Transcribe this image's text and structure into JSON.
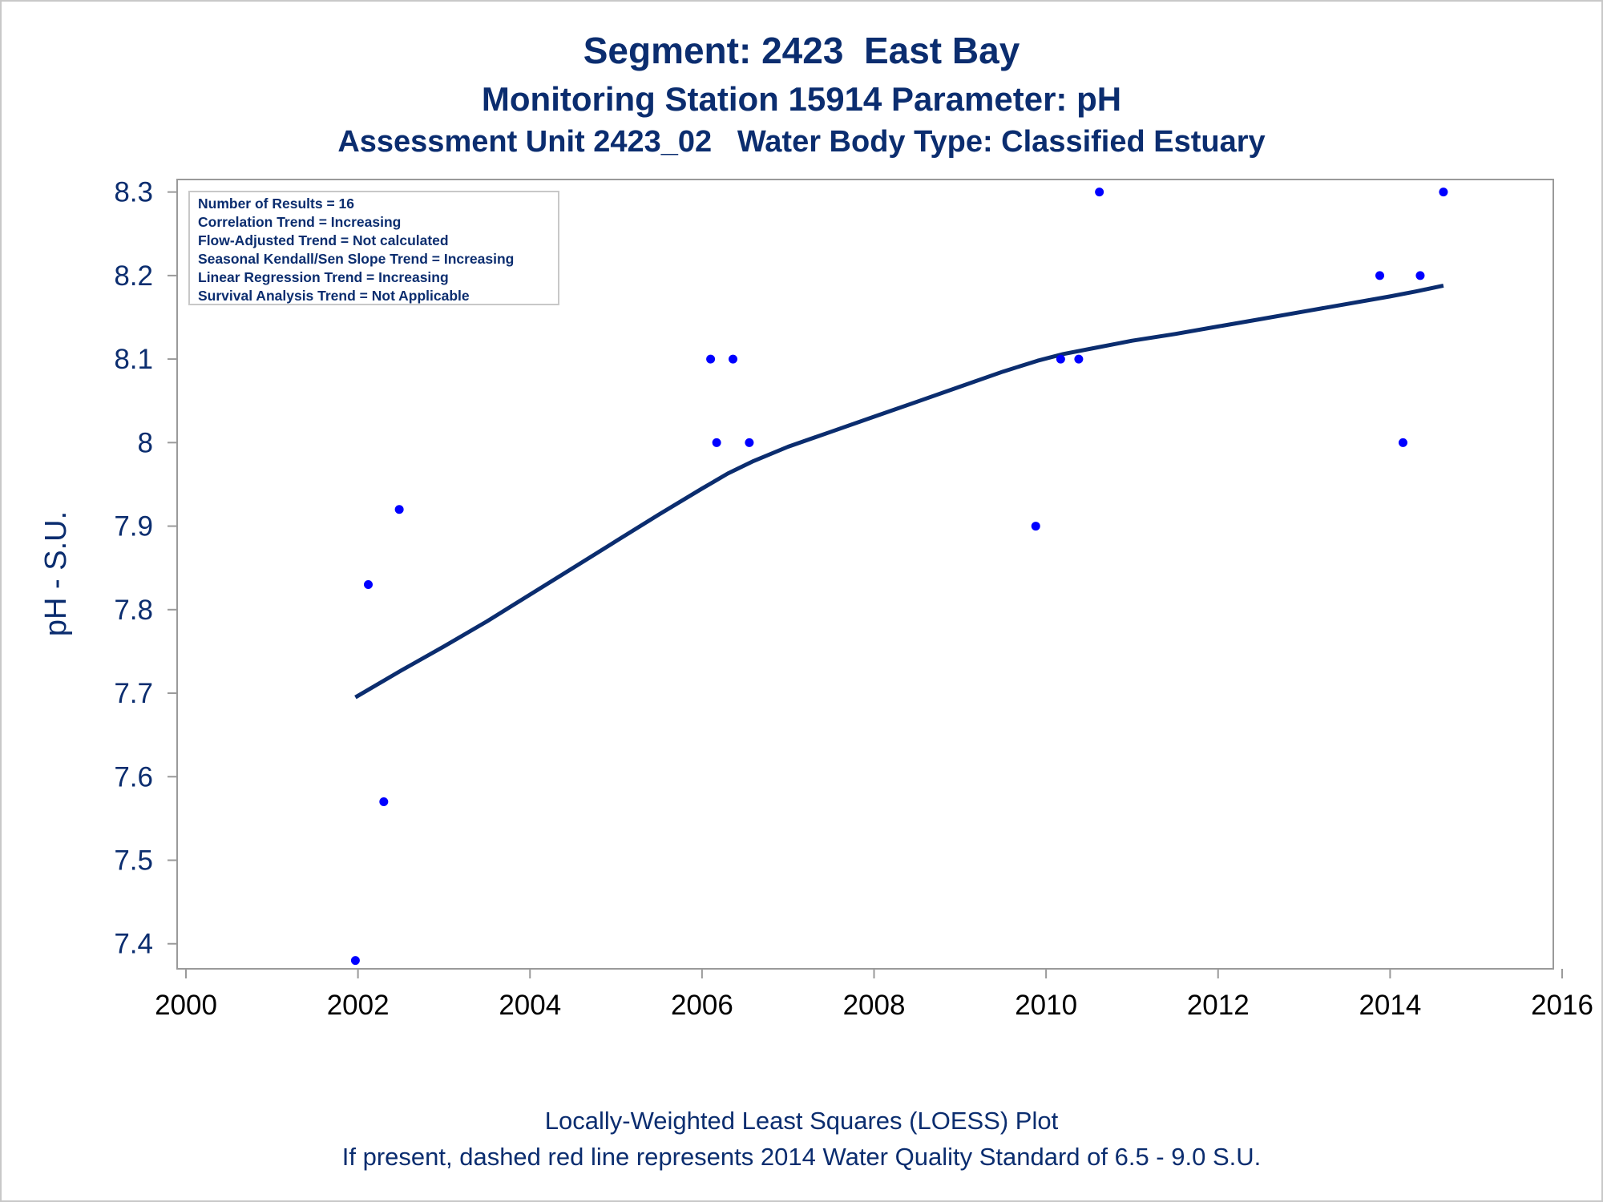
{
  "titles": {
    "line1": "Segment: 2423  East Bay",
    "line2": "Monitoring Station 15914 Parameter: pH",
    "line3": "Assessment Unit 2423_02   Water Body Type: Classified Estuary"
  },
  "footnotes": {
    "line1": "Locally-Weighted Least Squares (LOESS) Plot",
    "line2": "If present, dashed red line represents 2014 Water Quality Standard of 6.5 - 9.0 S.U."
  },
  "inset": [
    "Number of Results = 16",
    "Correlation Trend = Increasing",
    "Flow-Adjusted Trend = Not calculated",
    "Seasonal Kendall/Sen Slope Trend = Increasing",
    "Linear Regression Trend = Increasing",
    "Survival Analysis Trend = Not Applicable"
  ],
  "colors": {
    "text": "#0b2d6f",
    "points": "#0000ff",
    "loess": "#0b2d6f",
    "axis": "#9a9a9a"
  },
  "chart_data": {
    "type": "scatter",
    "ylabel": "pH - S.U.",
    "xlabel": "",
    "xlim": [
      2000,
      2016
    ],
    "ylim": [
      7.37,
      8.315
    ],
    "x_ticks": [
      2000,
      2002,
      2004,
      2006,
      2008,
      2010,
      2012,
      2014,
      2016
    ],
    "y_ticks": [
      7.4,
      7.5,
      7.6,
      7.7,
      7.8,
      7.9,
      8,
      8.1,
      8.2,
      8.3
    ],
    "grid": false,
    "series": [
      {
        "type": "scatter",
        "x": [
          2001.97,
          2002.12,
          2002.3,
          2002.48,
          2006.1,
          2006.17,
          2006.36,
          2006.55,
          2009.88,
          2010.17,
          2010.38,
          2010.62,
          2013.88,
          2014.15,
          2014.35,
          2014.62
        ],
        "y": [
          7.38,
          7.83,
          7.57,
          7.92,
          8.1,
          8.0,
          8.1,
          8.0,
          7.9,
          8.1,
          8.1,
          8.3,
          8.2,
          8.0,
          8.2,
          8.3
        ]
      },
      {
        "type": "line",
        "x": [
          2001.97,
          2002.5,
          2003,
          2003.5,
          2004,
          2004.5,
          2005,
          2005.5,
          2006,
          2006.3,
          2006.6,
          2007,
          2007.5,
          2008,
          2008.5,
          2009,
          2009.5,
          2009.9,
          2010.2,
          2010.6,
          2011,
          2011.5,
          2012,
          2012.5,
          2013,
          2013.5,
          2014,
          2014.3,
          2014.62
        ],
        "y": [
          7.695,
          7.727,
          7.756,
          7.786,
          7.818,
          7.85,
          7.882,
          7.914,
          7.945,
          7.963,
          7.978,
          7.995,
          8.013,
          8.031,
          8.049,
          8.067,
          8.085,
          8.098,
          8.106,
          8.114,
          8.122,
          8.13,
          8.139,
          8.148,
          8.157,
          8.166,
          8.175,
          8.181,
          8.188
        ]
      }
    ]
  }
}
